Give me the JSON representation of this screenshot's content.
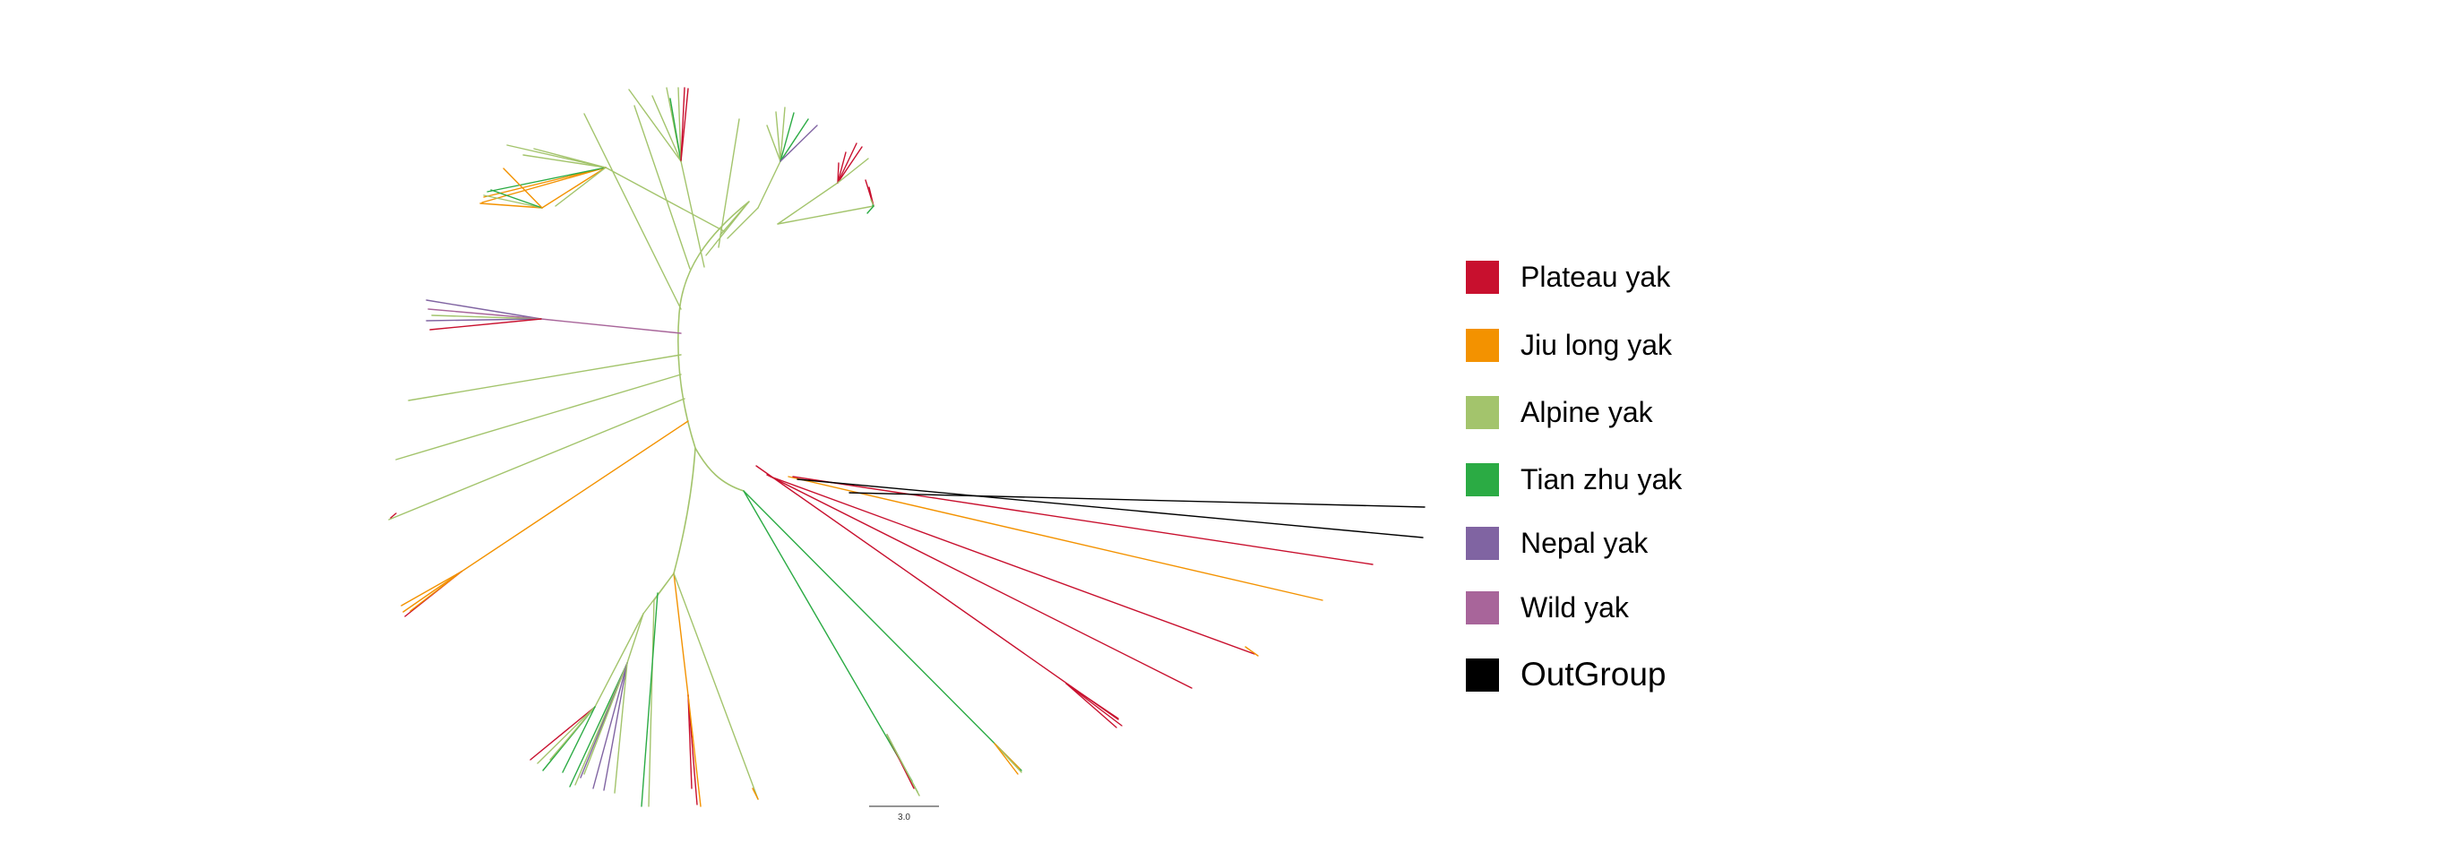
{
  "legend": {
    "items": [
      {
        "label": "Plateau yak",
        "color": "#c8102e"
      },
      {
        "label": "Jiu long yak",
        "color": "#f39200"
      },
      {
        "label": "Alpine yak",
        "color": "#a3c46c"
      },
      {
        "label": "Tian zhu yak",
        "color": "#2bab44"
      },
      {
        "label": "Nepal yak",
        "color": "#8064a2"
      },
      {
        "label": "Wild yak",
        "color": "#a8659a"
      },
      {
        "label": "OutGroup",
        "color": "#000000"
      }
    ]
  },
  "tree": {
    "type": "unrooted-phylogenetic-tree",
    "branch_color": "#a3c46c",
    "scale_bar": {
      "label": "3.0"
    }
  }
}
